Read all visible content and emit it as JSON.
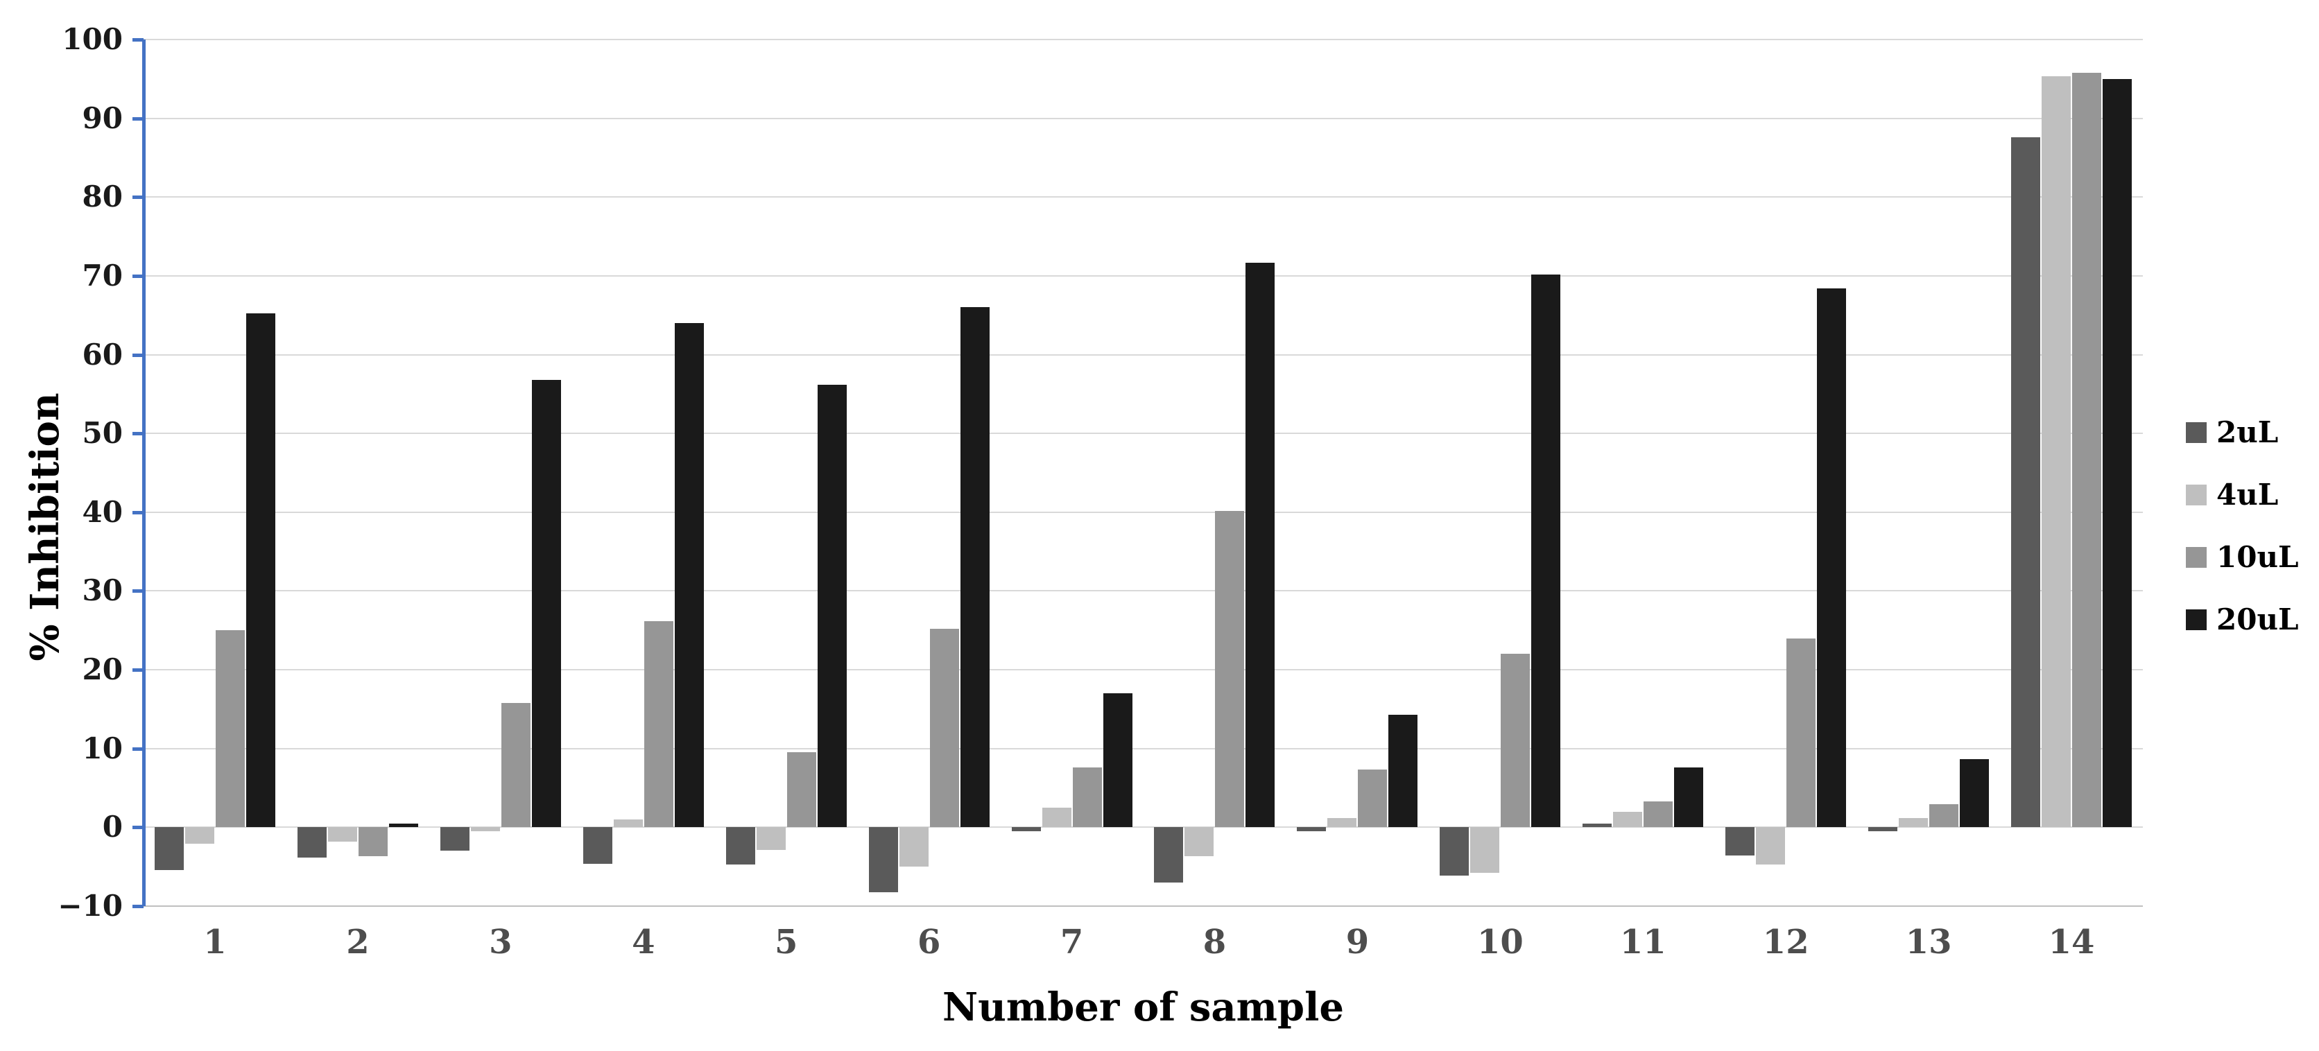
{
  "chart_data": {
    "type": "bar",
    "title": "",
    "xlabel": "Number of sample",
    "ylabel": "% Inhibition",
    "categories": [
      "1",
      "2",
      "3",
      "4",
      "5",
      "6",
      "7",
      "8",
      "9",
      "10",
      "11",
      "12",
      "13",
      "14"
    ],
    "series": [
      {
        "name": "2uL",
        "color": "#5a5a5a",
        "values": [
          -5.4,
          -3.8,
          -3.0,
          -4.6,
          -4.7,
          -8.2,
          -0.5,
          -7.0,
          -0.5,
          -6.1,
          0.5,
          -3.6,
          -0.5,
          87.6
        ]
      },
      {
        "name": "4uL",
        "color": "#bfbfbf",
        "values": [
          -2.1,
          -1.8,
          -0.5,
          1.0,
          -2.9,
          -5.0,
          2.5,
          -3.7,
          1.2,
          -5.8,
          2.0,
          -4.7,
          1.2,
          95.3
        ]
      },
      {
        "name": "10uL",
        "color": "#969696",
        "values": [
          25.0,
          -3.7,
          15.8,
          26.2,
          9.5,
          25.2,
          7.6,
          40.2,
          7.3,
          22.0,
          3.3,
          24.0,
          2.9,
          95.8
        ]
      },
      {
        "name": "20uL",
        "color": "#1a1a1a",
        "values": [
          65.2,
          0.5,
          56.8,
          64.0,
          56.2,
          66.0,
          17.0,
          71.7,
          14.3,
          70.2,
          7.6,
          68.4,
          8.7,
          95.0
        ]
      }
    ],
    "ylim": [
      -10,
      100
    ],
    "ytick_step": 10,
    "y_tick_labels": [
      "100",
      "90",
      "80",
      "70",
      "60",
      "50",
      "40",
      "30",
      "20",
      "10",
      "0",
      "−10"
    ],
    "grid": true,
    "legend_position": "right",
    "axis_line_color": "#4472c4",
    "gridline_color": "#d9d9d9",
    "category_label_color": "#4d4d4d"
  }
}
